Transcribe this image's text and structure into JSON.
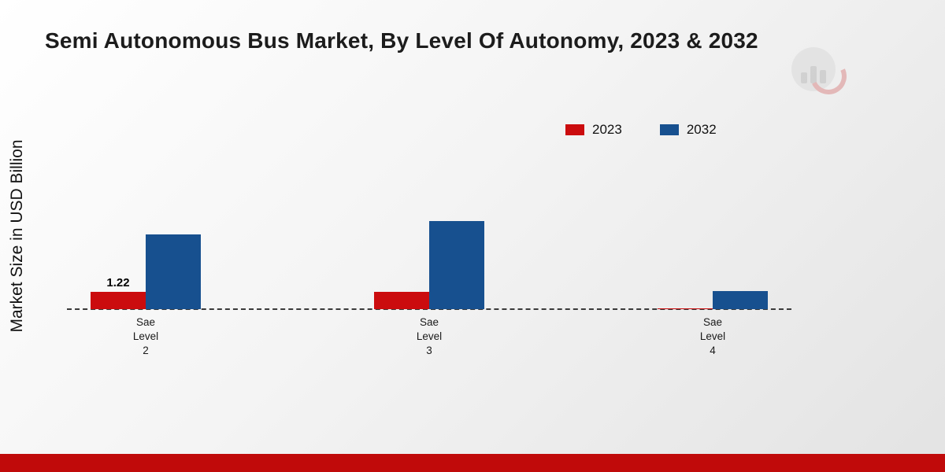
{
  "title": "Semi Autonomous Bus Market, By Level Of Autonomy, 2023 & 2032",
  "ylabel": "Market Size in USD Billion",
  "colors": {
    "red": "#cb0c0e",
    "blue": "#17508f",
    "bottom_strip": "#c00a0a"
  },
  "legend": {
    "items": [
      {
        "label": "2023",
        "color": "#cb0c0e"
      },
      {
        "label": "2032",
        "color": "#17508f"
      }
    ]
  },
  "chart_data": {
    "type": "bar",
    "title": "Semi Autonomous Bus Market, By Level Of Autonomy, 2023 & 2032",
    "xlabel": "",
    "ylabel": "Market Size in USD Billion",
    "categories": [
      "Sae\nLevel\n2",
      "Sae\nLevel\n3",
      "Sae\nLevel\n4"
    ],
    "series": [
      {
        "name": "2023",
        "color": "#cb0c0e",
        "values": [
          1.22,
          1.25,
          0.08
        ],
        "labels": [
          "1.22",
          "",
          ""
        ]
      },
      {
        "name": "2032",
        "color": "#17508f",
        "values": [
          5.3,
          6.25,
          1.3
        ],
        "labels": [
          "",
          "",
          ""
        ]
      }
    ],
    "ylim": [
      0,
      7
    ],
    "grid": false,
    "baseline_style": "dashed",
    "legend_position": "top-right"
  }
}
